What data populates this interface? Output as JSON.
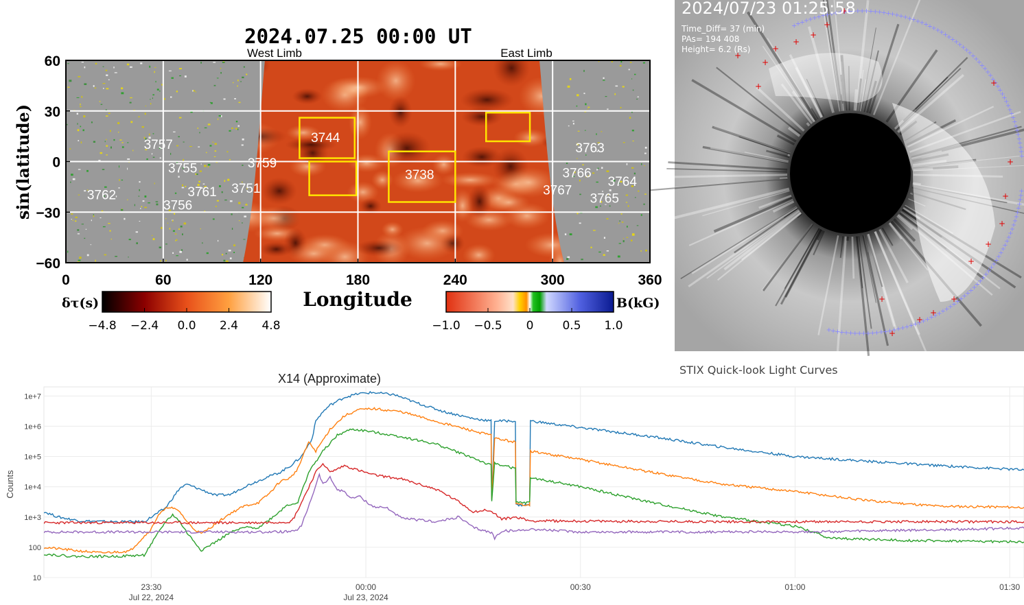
{
  "farside": {
    "title": "2024.07.25  00:00  UT",
    "west_limb": "West Limb",
    "east_limb": "East Limb",
    "ylabel": "sin(latitude)",
    "xlabel": "Longitude",
    "x_ticks": [
      "0",
      "60",
      "120",
      "180",
      "240",
      "300",
      "360"
    ],
    "y_ticks": [
      "60",
      "30",
      "0",
      "−30",
      "−60"
    ],
    "regions": [
      {
        "label": "3757",
        "lon": 57,
        "lat": 10
      },
      {
        "label": "3755",
        "lon": 72,
        "lat": -4
      },
      {
        "label": "3759",
        "lon": 121,
        "lat": -1
      },
      {
        "label": "3762",
        "lon": 22,
        "lat": -20
      },
      {
        "label": "3761",
        "lon": 84,
        "lat": -18
      },
      {
        "label": "3751",
        "lon": 111,
        "lat": -16
      },
      {
        "label": "3756",
        "lon": 69,
        "lat": -26
      },
      {
        "label": "3744",
        "lon": 160,
        "lat": 14
      },
      {
        "label": "3738",
        "lon": 218,
        "lat": -8
      },
      {
        "label": "3763",
        "lon": 323,
        "lat": 8
      },
      {
        "label": "3766",
        "lon": 315,
        "lat": -7
      },
      {
        "label": "3764",
        "lon": 343,
        "lat": -12
      },
      {
        "label": "3767",
        "lon": 303,
        "lat": -17
      },
      {
        "label": "3765",
        "lon": 332,
        "lat": -22
      }
    ],
    "boxes": [
      {
        "lon1": 144,
        "lon2": 178,
        "lat1": 2,
        "lat2": 26
      },
      {
        "lon1": 150,
        "lon2": 179,
        "lat1": -20,
        "lat2": 0
      },
      {
        "lon1": 199,
        "lon2": 240,
        "lat1": -24,
        "lat2": 6
      },
      {
        "lon1": 259,
        "lon2": 286,
        "lat1": 12,
        "lat2": 29
      }
    ],
    "cbar_left": {
      "label": "δτ(s)",
      "ticks": [
        "−4.8",
        "−2.4",
        "0.0",
        "2.4",
        "4.8"
      ]
    },
    "cbar_right": {
      "label": "B(kG)",
      "ticks": [
        "−1.0",
        "−0.5",
        "0",
        "0.5",
        "1.0"
      ]
    }
  },
  "coronagraph": {
    "timestamp": "2024/07/23 01:25:58",
    "lines": [
      "Time_Diff= 37 (min)",
      "PAs=  194  408",
      "Height=  6.2 (Rs)"
    ]
  },
  "stix": {
    "header": "STIX Quick-look Light Curves",
    "title": "X14 (Approximate)",
    "ylabel": "Counts"
  },
  "chart_data": {
    "type": "line",
    "title": "X14 (Approximate)",
    "ylabel": "Counts",
    "yscale": "log",
    "ylim": [
      10,
      20000000
    ],
    "xlim_minutes_from_2315": [
      0,
      137
    ],
    "y_ticks": [
      "10",
      "100",
      "1e+3",
      "1e+4",
      "1e+5",
      "1e+6",
      "1e+7"
    ],
    "x_ticks": [
      {
        "t": 15,
        "label": "23:30",
        "date": "Jul 22, 2024"
      },
      {
        "t": 45,
        "label": "00:00",
        "date": "Jul 23, 2024"
      },
      {
        "t": 75,
        "label": "00:30",
        "date": ""
      },
      {
        "t": 105,
        "label": "01:00",
        "date": ""
      },
      {
        "t": 135,
        "label": "01:30",
        "date": ""
      }
    ],
    "grid": true,
    "series": [
      {
        "name": "",
        "color": "#1f77b4",
        "points": [
          [
            0,
            1500
          ],
          [
            2,
            1000
          ],
          [
            5,
            750
          ],
          [
            9,
            700
          ],
          [
            14,
            700
          ],
          [
            17,
            2000
          ],
          [
            19,
            9000
          ],
          [
            20,
            12000
          ],
          [
            22,
            8000
          ],
          [
            24,
            5200
          ],
          [
            26,
            5500
          ],
          [
            28,
            10000
          ],
          [
            31,
            20000
          ],
          [
            33,
            30000
          ],
          [
            34.5,
            50000
          ],
          [
            36,
            100000
          ],
          [
            37.5,
            400000
          ],
          [
            38,
            1500000
          ],
          [
            39,
            3000000
          ],
          [
            40,
            5000000
          ],
          [
            42,
            9000000
          ],
          [
            44,
            12000000
          ],
          [
            46,
            13000000
          ],
          [
            49,
            11000000
          ],
          [
            52,
            6000000
          ],
          [
            56,
            3000000
          ],
          [
            60,
            1800000
          ],
          [
            62.5,
            1500000
          ],
          [
            62.6,
            3500
          ],
          [
            63,
            1500000
          ],
          [
            65.9,
            1500000
          ],
          [
            66,
            2500
          ],
          [
            67.9,
            2500
          ],
          [
            68,
            1500000
          ],
          [
            75,
            900000
          ],
          [
            85,
            450000
          ],
          [
            95,
            200000
          ],
          [
            105,
            100000
          ],
          [
            115,
            70000
          ],
          [
            125,
            50000
          ],
          [
            137,
            36000
          ]
        ]
      },
      {
        "name": "",
        "color": "#ff7f0e",
        "points": [
          [
            0,
            100
          ],
          [
            4,
            80
          ],
          [
            8,
            65
          ],
          [
            12,
            75
          ],
          [
            15,
            400
          ],
          [
            16,
            1200
          ],
          [
            17.5,
            2200
          ],
          [
            19,
            1500
          ],
          [
            20,
            700
          ],
          [
            21,
            400
          ],
          [
            22,
            280
          ],
          [
            24,
            600
          ],
          [
            26,
            1300
          ],
          [
            28,
            2300
          ],
          [
            30,
            3000
          ],
          [
            31.5,
            6000
          ],
          [
            33,
            15000
          ],
          [
            34.5,
            20000
          ],
          [
            35.5,
            40000
          ],
          [
            37,
            300000
          ],
          [
            38,
            150000
          ],
          [
            40,
            800000
          ],
          [
            42,
            2200000
          ],
          [
            44,
            3500000
          ],
          [
            46,
            3800000
          ],
          [
            50,
            3000000
          ],
          [
            55,
            1400000
          ],
          [
            60,
            700000
          ],
          [
            62.5,
            500000
          ],
          [
            62.6,
            4000
          ],
          [
            63,
            400000
          ],
          [
            65.9,
            300000
          ],
          [
            66,
            2600
          ],
          [
            67.9,
            2600
          ],
          [
            68,
            150000
          ],
          [
            75,
            80000
          ],
          [
            85,
            30000
          ],
          [
            95,
            12000
          ],
          [
            105,
            7000
          ],
          [
            115,
            3500
          ],
          [
            125,
            2300
          ],
          [
            137,
            2100
          ]
        ]
      },
      {
        "name": "",
        "color": "#2ca02c",
        "points": [
          [
            0,
            60
          ],
          [
            4,
            50
          ],
          [
            10,
            50
          ],
          [
            14,
            55
          ],
          [
            17,
            700
          ],
          [
            18,
            1200
          ],
          [
            19,
            700
          ],
          [
            20,
            300
          ],
          [
            22,
            80
          ],
          [
            24,
            150
          ],
          [
            26,
            300
          ],
          [
            28,
            450
          ],
          [
            30,
            450
          ],
          [
            32,
            1000
          ],
          [
            34,
            2500
          ],
          [
            35.5,
            3000
          ],
          [
            37,
            30000
          ],
          [
            39,
            150000
          ],
          [
            41,
            500000
          ],
          [
            43,
            800000
          ],
          [
            45,
            700000
          ],
          [
            50,
            450000
          ],
          [
            55,
            250000
          ],
          [
            60,
            90000
          ],
          [
            62.5,
            50000
          ],
          [
            62.6,
            3200
          ],
          [
            63,
            60000
          ],
          [
            65.9,
            40000
          ],
          [
            66,
            3000
          ],
          [
            67.9,
            3000
          ],
          [
            68,
            20000
          ],
          [
            75,
            10000
          ],
          [
            85,
            3000
          ],
          [
            95,
            1000
          ],
          [
            105,
            500
          ],
          [
            110,
            200
          ],
          [
            120,
            170
          ],
          [
            137,
            150
          ]
        ]
      },
      {
        "name": "",
        "color": "#d62728",
        "points": [
          [
            0,
            650
          ],
          [
            10,
            650
          ],
          [
            20,
            650
          ],
          [
            30,
            650
          ],
          [
            34.5,
            700
          ],
          [
            35,
            1000
          ],
          [
            36,
            3000
          ],
          [
            38,
            30000
          ],
          [
            39,
            60000
          ],
          [
            40,
            30000
          ],
          [
            42,
            50000
          ],
          [
            44,
            35000
          ],
          [
            46,
            25000
          ],
          [
            50,
            18000
          ],
          [
            55,
            8000
          ],
          [
            58,
            3200
          ],
          [
            60,
            1500
          ],
          [
            62,
            1700
          ],
          [
            63,
            1300
          ],
          [
            64,
            850
          ],
          [
            66,
            1000
          ],
          [
            68,
            750
          ],
          [
            80,
            720
          ],
          [
            100,
            700
          ],
          [
            120,
            700
          ],
          [
            137,
            700
          ]
        ]
      },
      {
        "name": "",
        "color": "#9467bd",
        "points": [
          [
            0,
            320
          ],
          [
            10,
            320
          ],
          [
            20,
            320
          ],
          [
            30,
            320
          ],
          [
            35,
            330
          ],
          [
            36,
            500
          ],
          [
            37.5,
            5000
          ],
          [
            38.5,
            25000
          ],
          [
            39,
            12000
          ],
          [
            40,
            20000
          ],
          [
            41,
            8000
          ],
          [
            42,
            7000
          ],
          [
            43,
            4000
          ],
          [
            44,
            5000
          ],
          [
            46,
            2200
          ],
          [
            48,
            2000
          ],
          [
            50,
            900
          ],
          [
            55,
            700
          ],
          [
            58,
            1000
          ],
          [
            60,
            450
          ],
          [
            62.6,
            300
          ],
          [
            63,
            200
          ],
          [
            64,
            350
          ],
          [
            66,
            350
          ],
          [
            68,
            400
          ],
          [
            75,
            320
          ],
          [
            90,
            320
          ],
          [
            110,
            330
          ],
          [
            120,
            360
          ],
          [
            130,
            400
          ],
          [
            137,
            430
          ]
        ]
      }
    ]
  }
}
